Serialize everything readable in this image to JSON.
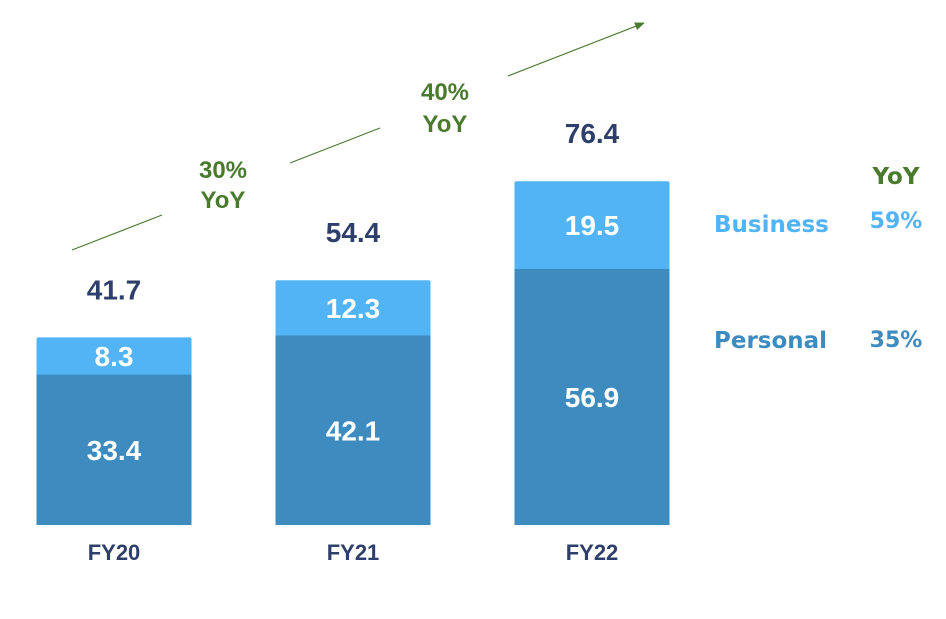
{
  "chart_data": {
    "type": "bar",
    "stacked": true,
    "categories": [
      "FY20",
      "FY21",
      "FY22"
    ],
    "series": [
      {
        "name": "Personal",
        "values": [
          33.4,
          42.1,
          56.9
        ],
        "color": "#3d8bbf",
        "yoy": "35%"
      },
      {
        "name": "Business",
        "values": [
          8.3,
          12.3,
          19.5
        ],
        "color": "#52b3f5",
        "yoy": "59%"
      }
    ],
    "totals": [
      "41.7",
      "54.4",
      "76.4"
    ],
    "segment_labels": {
      "Personal": [
        "33.4",
        "42.1",
        "56.9"
      ],
      "Business": [
        "8.3",
        "12.3",
        "19.5"
      ]
    },
    "growth_annotations": [
      {
        "line1": "30%",
        "line2": "YoY"
      },
      {
        "line1": "40%",
        "line2": "YoY"
      }
    ],
    "legend_header": "YoY",
    "growth_color": "#4a7a2e",
    "label_color": "#2e3f6b",
    "grid": false
  }
}
